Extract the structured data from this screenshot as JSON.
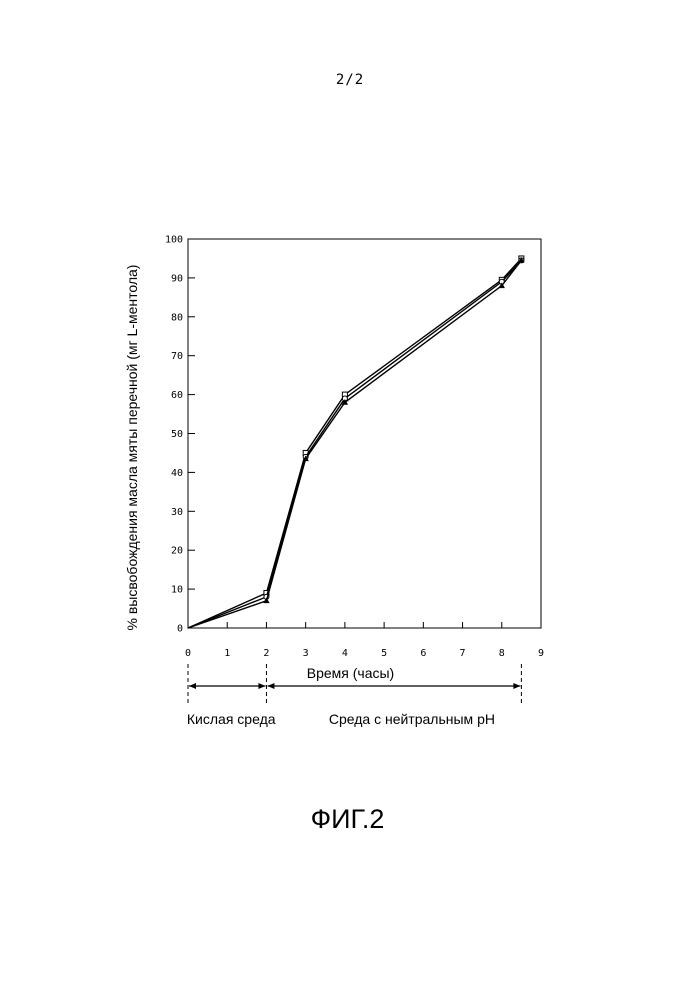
{
  "page": {
    "number": "2/2",
    "caption": "ФИГ.2"
  },
  "chart_data": {
    "type": "line",
    "xlabel": "Время (часы)",
    "ylabel": "% высвобождения масла мяты перечной (мг L-ментола)",
    "xlim": [
      0,
      9
    ],
    "ylim": [
      0,
      100
    ],
    "xticks": [
      0,
      1,
      2,
      3,
      4,
      5,
      6,
      7,
      8,
      9
    ],
    "yticks": [
      0,
      10,
      20,
      30,
      40,
      50,
      60,
      70,
      80,
      90,
      100
    ],
    "grid": false,
    "series": [
      {
        "marker": "square",
        "x": [
          0,
          2,
          3,
          4,
          8,
          8.5
        ],
        "y": [
          0,
          9,
          45,
          60,
          89.5,
          95
        ]
      },
      {
        "marker": "circle",
        "x": [
          0,
          2,
          3,
          4,
          8,
          8.5
        ],
        "y": [
          0,
          8,
          44,
          59,
          89,
          94.5
        ]
      },
      {
        "marker": "triangle",
        "x": [
          0,
          2,
          3,
          4,
          8,
          8.5
        ],
        "y": [
          0,
          7,
          43.5,
          58,
          88,
          94.5
        ]
      }
    ],
    "regions": [
      {
        "label": "Кислая среда",
        "x": [
          0,
          2
        ]
      },
      {
        "label": "Среда с нейтральным pH",
        "x": [
          2,
          8.5
        ]
      }
    ]
  }
}
